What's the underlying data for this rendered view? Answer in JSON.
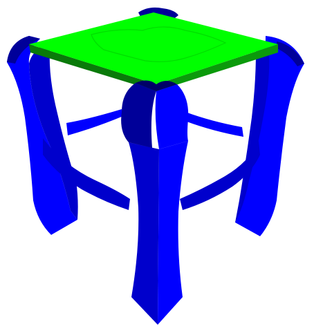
{
  "scene": {
    "subject": "3D table model",
    "colors": {
      "background": "#ffffff",
      "top_light": "#00ff00",
      "top_edge_dark": "#0a7a0a",
      "top_edge_mid": "#0b9a0b",
      "top_groove": "#00dd00",
      "leg_bright": "#0000ff",
      "leg_mid": "#0000cc",
      "leg_dark": "#000099",
      "leg_darkest": "#000066"
    }
  }
}
